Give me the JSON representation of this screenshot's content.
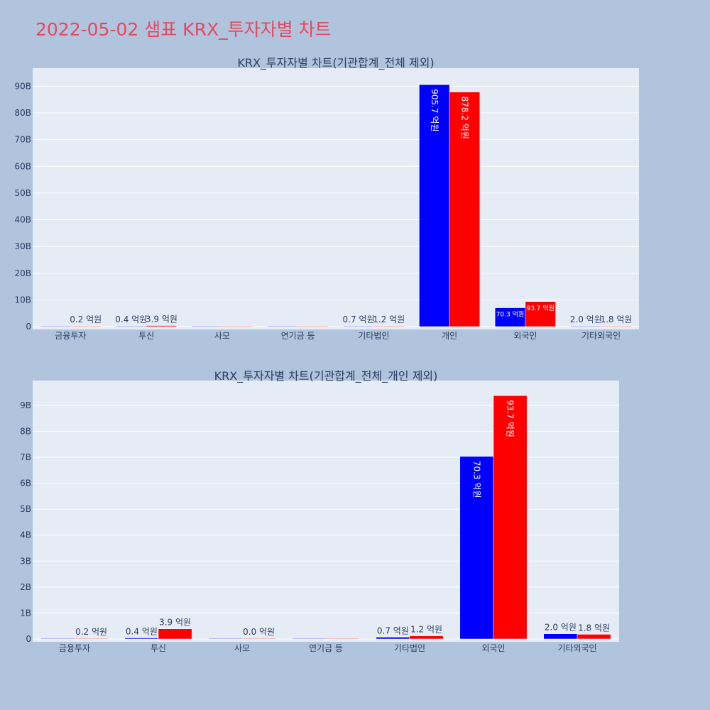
{
  "page": {
    "title": "2022-05-02 샘표 KRX_투자자별 차트"
  },
  "colors": {
    "background": "#b0c4de",
    "plot_bg": "#e5ecf6",
    "buy": "#0000ff",
    "sell": "#ff0000",
    "title": "#e8475f"
  },
  "chart_data": [
    {
      "type": "bar",
      "title": "KRX_투자자별 차트(기관합계_전체 제외)",
      "categories": [
        "금융투자",
        "투신",
        "사모",
        "연기금 등",
        "기타법인",
        "개인",
        "외국인",
        "기타외국인"
      ],
      "series": [
        {
          "color": "#0000ff",
          "values": [
            0,
            40000000,
            0,
            0,
            70000000,
            90570000000,
            7030000000,
            200000000
          ],
          "labels": [
            "",
            "0.4 억원",
            "",
            "",
            "0.7 억원",
            "905.7 억원",
            "70.3 억원",
            "2.0 억원"
          ]
        },
        {
          "color": "#ff0000",
          "values": [
            20000000,
            390000000,
            0,
            0,
            120000000,
            87820000000,
            9370000000,
            180000000
          ],
          "labels": [
            "0.2 억원",
            "3.9 억원",
            "",
            "",
            "1.2 억원",
            "878.2 억원",
            "93.7 억원",
            "1.8 억원"
          ]
        }
      ],
      "yticks": [
        0,
        10000000000,
        20000000000,
        30000000000,
        40000000000,
        50000000000,
        60000000000,
        70000000000,
        80000000000,
        90000000000
      ],
      "yticklabels": [
        "0",
        "10B",
        "20B",
        "30B",
        "40B",
        "50B",
        "60B",
        "70B",
        "80B",
        "90B"
      ],
      "ylim": [
        0,
        95960000000
      ],
      "grid": true,
      "legend": "none"
    },
    {
      "type": "bar",
      "title": "KRX_투자자별 차트(기관합계_전체_개인 제외)",
      "categories": [
        "금융투자",
        "투신",
        "사모",
        "연기금 등",
        "기타법인",
        "외국인",
        "기타외국인"
      ],
      "series": [
        {
          "color": "#0000ff",
          "values": [
            0,
            40000000,
            0,
            0,
            70000000,
            7030000000,
            200000000
          ],
          "labels": [
            "",
            "0.4 억원",
            "",
            "",
            "0.7 억원",
            "70.3 억원",
            "2.0 억원"
          ]
        },
        {
          "color": "#ff0000",
          "values": [
            20000000,
            390000000,
            0,
            0,
            120000000,
            9370000000,
            180000000
          ],
          "labels": [
            "0.2 억원",
            "3.9 억원",
            "0.0 억원",
            "",
            "1.2 억원",
            "93.7 억원",
            "1.8 억원"
          ]
        }
      ],
      "yticks": [
        0,
        1000000000,
        2000000000,
        3000000000,
        4000000000,
        5000000000,
        6000000000,
        7000000000,
        8000000000,
        9000000000
      ],
      "yticklabels": [
        "0",
        "1B",
        "2B",
        "3B",
        "4B",
        "5B",
        "6B",
        "7B",
        "8B",
        "9B"
      ],
      "ylim": [
        0,
        9870000000
      ],
      "grid": true,
      "legend": "none"
    }
  ]
}
